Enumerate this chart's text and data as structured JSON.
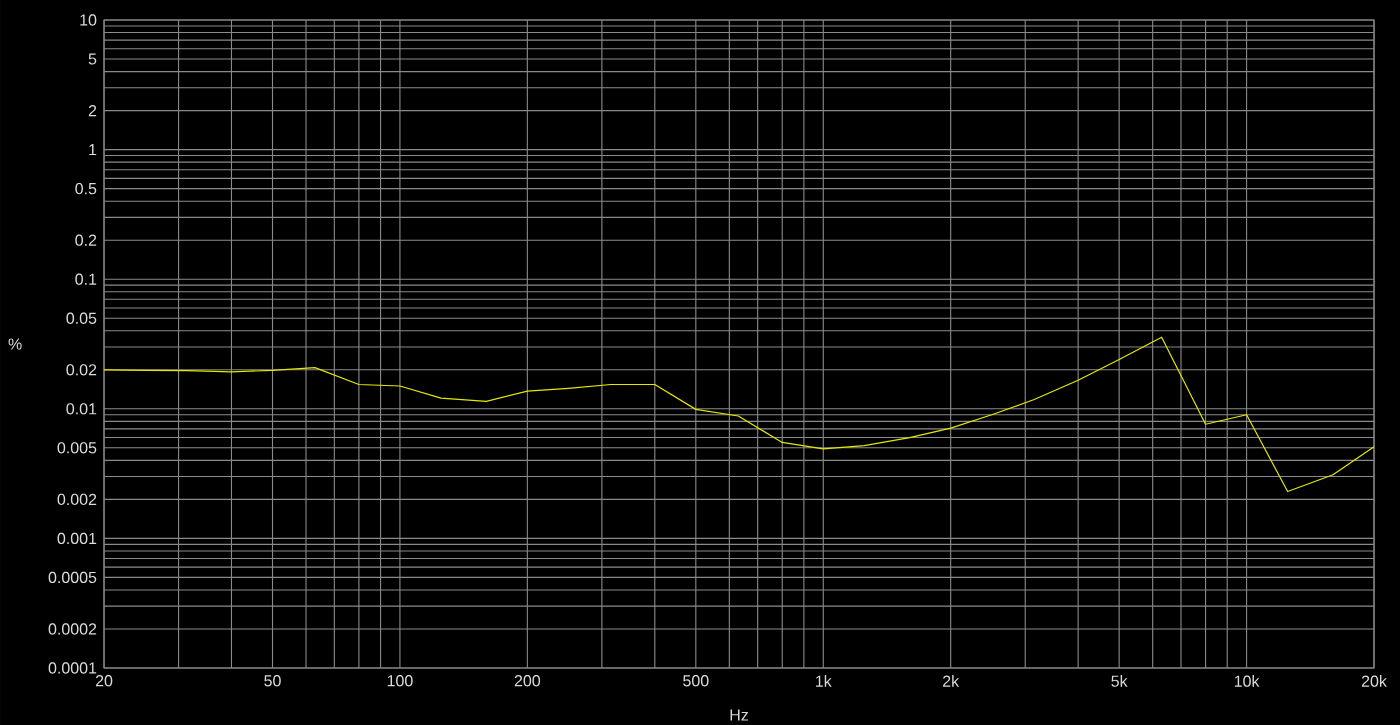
{
  "chart_data": {
    "type": "line",
    "xlabel": "Hz",
    "ylabel": "%",
    "x": [
      20,
      25,
      31.5,
      40,
      50,
      63,
      80,
      100,
      125,
      160,
      200,
      250,
      315,
      400,
      500,
      630,
      800,
      1000,
      1250,
      1600,
      2000,
      2500,
      3150,
      4000,
      5000,
      6300,
      8000,
      10000,
      12500,
      16000,
      20000
    ],
    "series": [
      {
        "color": "#e6e600",
        "values": [
          0.02,
          0.0198,
          0.0197,
          0.0193,
          0.0198,
          0.0208,
          0.0154,
          0.015,
          0.0121,
          0.0114,
          0.0137,
          0.0144,
          0.0154,
          0.0154,
          0.0099,
          0.0088,
          0.0055,
          0.0049,
          0.0052,
          0.006,
          0.0071,
          0.009,
          0.0118,
          0.0166,
          0.024,
          0.0357,
          0.0076,
          0.009,
          0.0023,
          0.0031,
          0.0051
        ]
      }
    ],
    "xlim": [
      20,
      20000
    ],
    "ylim": [
      0.0001,
      10
    ],
    "xticks": [
      20,
      50,
      100,
      200,
      500,
      {
        "value": 1000,
        "label": "1k"
      },
      {
        "value": 2000,
        "label": "2k"
      },
      {
        "value": 5000,
        "label": "5k"
      },
      {
        "value": 10000,
        "label": "10k"
      },
      {
        "value": 20000,
        "label": "20k"
      }
    ],
    "yticks": [
      0.0001,
      0.0002,
      0.0005,
      0.001,
      0.002,
      0.005,
      0.01,
      0.02,
      0.05,
      0.1,
      0.2,
      0.5,
      1,
      2,
      5,
      10
    ],
    "log": "xy",
    "grid": true
  }
}
